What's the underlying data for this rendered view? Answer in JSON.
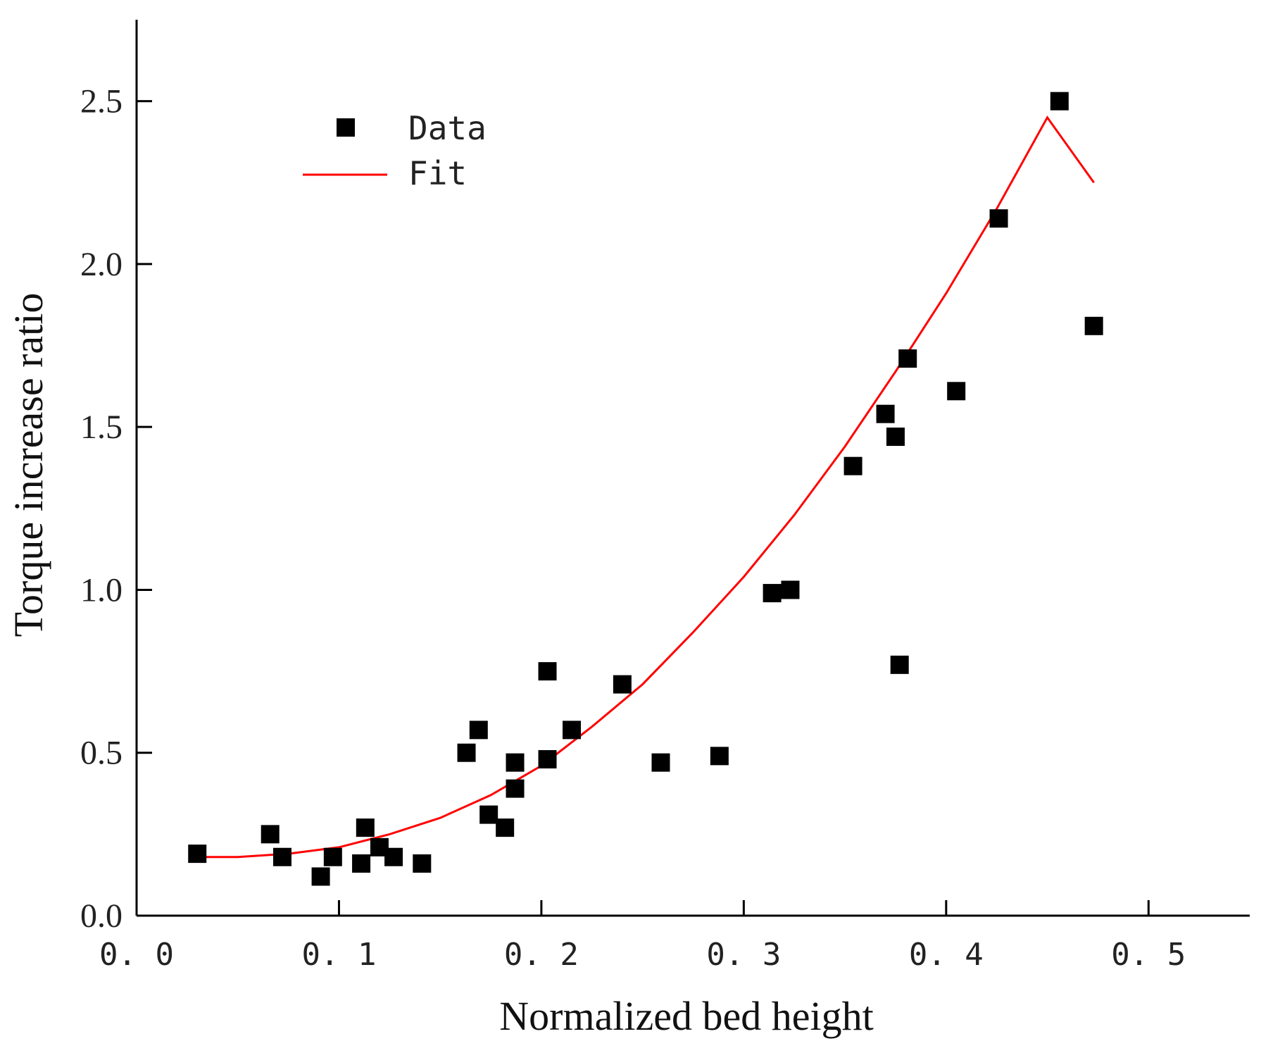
{
  "chart_data": {
    "type": "scatter",
    "xlabel": "Normalized bed height",
    "ylabel": "Torque increase ratio",
    "xlim": [
      0.0,
      0.55
    ],
    "ylim": [
      0.0,
      2.75
    ],
    "xticks": [
      0.0,
      0.1,
      0.2,
      0.3,
      0.4,
      0.5
    ],
    "xtick_labels": [
      "0. 0",
      "0. 1",
      "0. 2",
      "0. 3",
      "0. 4",
      "0. 5"
    ],
    "yticks": [
      0.0,
      0.5,
      1.0,
      1.5,
      2.0,
      2.5
    ],
    "ytick_labels": [
      "0.0",
      "0.5",
      "1.0",
      "1.5",
      "2.0",
      "2.5"
    ],
    "grid": false,
    "legend_position": "top-left",
    "series": [
      {
        "name": "Data",
        "kind": "scatter",
        "marker": "square",
        "color": "#000000",
        "points": [
          [
            0.03,
            0.19
          ],
          [
            0.066,
            0.25
          ],
          [
            0.072,
            0.18
          ],
          [
            0.091,
            0.12
          ],
          [
            0.097,
            0.18
          ],
          [
            0.111,
            0.16
          ],
          [
            0.113,
            0.27
          ],
          [
            0.12,
            0.21
          ],
          [
            0.127,
            0.18
          ],
          [
            0.141,
            0.16
          ],
          [
            0.163,
            0.5
          ],
          [
            0.169,
            0.57
          ],
          [
            0.174,
            0.31
          ],
          [
            0.182,
            0.27
          ],
          [
            0.187,
            0.39
          ],
          [
            0.187,
            0.47
          ],
          [
            0.203,
            0.75
          ],
          [
            0.203,
            0.48
          ],
          [
            0.215,
            0.57
          ],
          [
            0.24,
            0.71
          ],
          [
            0.259,
            0.47
          ],
          [
            0.288,
            0.49
          ],
          [
            0.314,
            0.99
          ],
          [
            0.323,
            1.0
          ],
          [
            0.354,
            1.38
          ],
          [
            0.37,
            1.54
          ],
          [
            0.375,
            1.47
          ],
          [
            0.377,
            0.77
          ],
          [
            0.381,
            1.71
          ],
          [
            0.405,
            1.61
          ],
          [
            0.426,
            2.14
          ],
          [
            0.456,
            2.5
          ],
          [
            0.473,
            1.81
          ]
        ]
      },
      {
        "name": "Fit",
        "kind": "line",
        "color": "#ff0000",
        "points": [
          [
            0.03,
            0.18
          ],
          [
            0.05,
            0.18
          ],
          [
            0.075,
            0.19
          ],
          [
            0.1,
            0.21
          ],
          [
            0.125,
            0.25
          ],
          [
            0.15,
            0.3
          ],
          [
            0.175,
            0.37
          ],
          [
            0.2,
            0.46
          ],
          [
            0.225,
            0.58
          ],
          [
            0.25,
            0.71
          ],
          [
            0.275,
            0.87
          ],
          [
            0.3,
            1.04
          ],
          [
            0.325,
            1.23
          ],
          [
            0.35,
            1.44
          ],
          [
            0.375,
            1.67
          ],
          [
            0.4,
            1.91
          ],
          [
            0.425,
            2.17
          ],
          [
            0.45,
            2.45
          ],
          [
            0.473,
            2.25
          ]
        ]
      }
    ]
  }
}
